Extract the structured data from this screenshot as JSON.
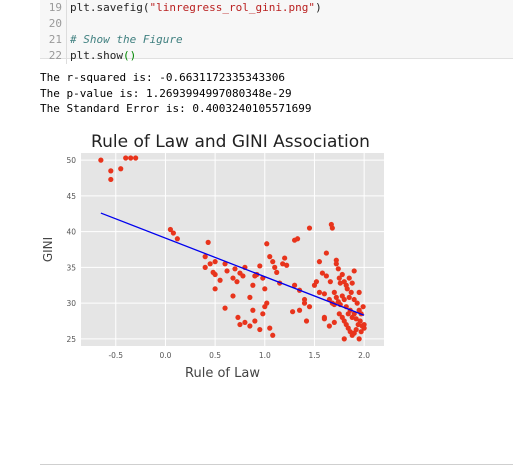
{
  "code_cell": {
    "lines": [
      {
        "num": "19",
        "pre": "plt.savefig(",
        "str": "\"linregress_rol_gini.png\"",
        "post": ")"
      },
      {
        "num": "20",
        "pre": "",
        "str": "",
        "post": ""
      },
      {
        "num": "21",
        "comment": "# Show the Figure"
      },
      {
        "num": "22",
        "pre": "plt.show",
        "paren": "()"
      }
    ]
  },
  "output": {
    "lines": [
      "The r-squared is: -0.6631172335343306",
      "The p-value is: 1.2693994997080348e-29",
      "The Standard Error is: 0.4003240105571699"
    ]
  },
  "chart_data": {
    "type": "scatter",
    "title": "Rule of Law and GINI Association",
    "xlabel": "Rule of Law",
    "ylabel": "GINI",
    "xlim": [
      -0.85,
      2.2
    ],
    "ylim": [
      24,
      51
    ],
    "xticks": [
      "-0.5",
      "0.0",
      "0.5",
      "1.0",
      "1.5",
      "2.0"
    ],
    "xtick_values": [
      -0.5,
      0.0,
      0.5,
      1.0,
      1.5,
      2.0
    ],
    "yticks": [
      "25",
      "30",
      "35",
      "40",
      "45",
      "50"
    ],
    "ytick_values": [
      25,
      30,
      35,
      40,
      45,
      50
    ],
    "grid": true,
    "point_color": "#e8341c",
    "line_color": "#0000ee",
    "background": "#e5e5e5",
    "regression": {
      "x": [
        -0.65,
        2.0
      ],
      "y": [
        42.6,
        28.3
      ]
    },
    "points": [
      [
        -0.65,
        50.0
      ],
      [
        -0.55,
        48.5
      ],
      [
        -0.55,
        47.3
      ],
      [
        -0.45,
        48.8
      ],
      [
        -0.4,
        50.3
      ],
      [
        -0.35,
        50.3
      ],
      [
        -0.3,
        50.3
      ],
      [
        0.05,
        40.3
      ],
      [
        0.08,
        39.8
      ],
      [
        0.12,
        39.0
      ],
      [
        0.4,
        36.5
      ],
      [
        0.43,
        38.5
      ],
      [
        0.4,
        35.0
      ],
      [
        0.45,
        35.5
      ],
      [
        0.48,
        34.3
      ],
      [
        0.5,
        35.8
      ],
      [
        0.5,
        34.0
      ],
      [
        0.55,
        33.2
      ],
      [
        0.6,
        35.5
      ],
      [
        0.62,
        34.5
      ],
      [
        0.68,
        33.5
      ],
      [
        0.7,
        34.8
      ],
      [
        0.72,
        33.0
      ],
      [
        0.75,
        34.2
      ],
      [
        0.78,
        33.8
      ],
      [
        0.8,
        35.0
      ],
      [
        0.85,
        30.8
      ],
      [
        0.88,
        32.5
      ],
      [
        0.9,
        33.8
      ],
      [
        0.92,
        34.0
      ],
      [
        0.95,
        35.2
      ],
      [
        0.98,
        33.5
      ],
      [
        1.0,
        32.0
      ],
      [
        1.02,
        38.3
      ],
      [
        1.05,
        36.5
      ],
      [
        1.08,
        35.8
      ],
      [
        1.1,
        35.0
      ],
      [
        1.12,
        34.3
      ],
      [
        1.15,
        32.8
      ],
      [
        1.18,
        35.5
      ],
      [
        1.2,
        36.3
      ],
      [
        1.22,
        35.3
      ],
      [
        0.5,
        32.0
      ],
      [
        0.6,
        29.3
      ],
      [
        0.68,
        31.0
      ],
      [
        0.73,
        28.0
      ],
      [
        0.75,
        27.0
      ],
      [
        0.8,
        27.3
      ],
      [
        0.85,
        26.8
      ],
      [
        0.9,
        27.5
      ],
      [
        0.95,
        26.3
      ],
      [
        1.0,
        29.5
      ],
      [
        1.05,
        26.5
      ],
      [
        0.98,
        28.5
      ],
      [
        0.88,
        29.0
      ],
      [
        1.08,
        25.5
      ],
      [
        1.02,
        30.0
      ],
      [
        1.3,
        38.8
      ],
      [
        1.33,
        39.0
      ],
      [
        1.45,
        40.5
      ],
      [
        1.67,
        41.0
      ],
      [
        1.68,
        40.5
      ],
      [
        1.62,
        37.0
      ],
      [
        1.58,
        34.2
      ],
      [
        1.55,
        35.8
      ],
      [
        1.3,
        32.5
      ],
      [
        1.35,
        31.8
      ],
      [
        1.4,
        30.5
      ],
      [
        1.35,
        29.0
      ],
      [
        1.4,
        30.0
      ],
      [
        1.45,
        29.5
      ],
      [
        1.28,
        28.8
      ],
      [
        1.42,
        27.5
      ],
      [
        1.5,
        32.5
      ],
      [
        1.52,
        33.0
      ],
      [
        1.55,
        31.5
      ],
      [
        1.6,
        31.3
      ],
      [
        1.62,
        33.8
      ],
      [
        1.65,
        30.5
      ],
      [
        1.68,
        30.0
      ],
      [
        1.7,
        29.8
      ],
      [
        1.72,
        35.5
      ],
      [
        1.74,
        34.8
      ],
      [
        1.75,
        33.5
      ],
      [
        1.76,
        32.8
      ],
      [
        1.78,
        34.0
      ],
      [
        1.8,
        33.0
      ],
      [
        1.82,
        32.5
      ],
      [
        1.85,
        33.5
      ],
      [
        1.7,
        31.5
      ],
      [
        1.72,
        30.8
      ],
      [
        1.74,
        30.2
      ],
      [
        1.76,
        29.8
      ],
      [
        1.78,
        31.0
      ],
      [
        1.8,
        30.5
      ],
      [
        1.82,
        29.5
      ],
      [
        1.84,
        28.5
      ],
      [
        1.86,
        29.0
      ],
      [
        1.88,
        28.0
      ],
      [
        1.9,
        28.5
      ],
      [
        1.92,
        27.8
      ],
      [
        1.94,
        27.0
      ],
      [
        1.96,
        27.5
      ],
      [
        1.98,
        26.8
      ],
      [
        2.0,
        27.0
      ],
      [
        1.75,
        28.5
      ],
      [
        1.78,
        28.0
      ],
      [
        1.8,
        27.5
      ],
      [
        1.82,
        27.0
      ],
      [
        1.84,
        26.5
      ],
      [
        1.86,
        26.0
      ],
      [
        1.88,
        25.5
      ],
      [
        1.9,
        25.8
      ],
      [
        1.92,
        26.3
      ],
      [
        1.95,
        25.0
      ],
      [
        1.97,
        26.0
      ],
      [
        2.0,
        26.5
      ],
      [
        1.7,
        27.3
      ],
      [
        1.65,
        26.8
      ],
      [
        1.6,
        28.0
      ],
      [
        1.8,
        25.0
      ],
      [
        1.83,
        32.0
      ],
      [
        1.87,
        31.5
      ],
      [
        1.9,
        30.5
      ],
      [
        1.93,
        30.0
      ],
      [
        1.95,
        29.0
      ],
      [
        1.97,
        28.5
      ],
      [
        1.99,
        29.5
      ],
      [
        1.85,
        30.8
      ],
      [
        1.6,
        27.8
      ],
      [
        1.66,
        33.0
      ],
      [
        1.88,
        32.8
      ],
      [
        1.72,
        36.0
      ],
      [
        1.9,
        34.5
      ],
      [
        1.95,
        31.5
      ]
    ]
  }
}
